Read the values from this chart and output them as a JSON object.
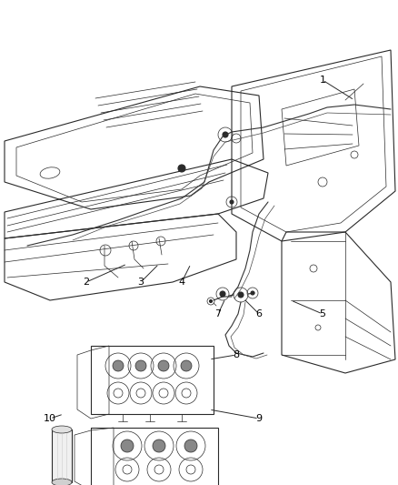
{
  "background_color": "#ffffff",
  "line_color": "#2a2a2a",
  "label_color": "#000000",
  "figsize": [
    4.38,
    5.33
  ],
  "dpi": 100,
  "labels_info": [
    [
      "1",
      355,
      88,
      390,
      110
    ],
    [
      "2",
      95,
      310,
      140,
      290
    ],
    [
      "3",
      155,
      310,
      175,
      290
    ],
    [
      "4",
      200,
      310,
      210,
      290
    ],
    [
      "5",
      355,
      345,
      320,
      330
    ],
    [
      "6",
      285,
      345,
      268,
      328
    ],
    [
      "7",
      240,
      345,
      248,
      328
    ],
    [
      "8",
      260,
      390,
      230,
      395
    ],
    [
      "9",
      285,
      460,
      230,
      450
    ],
    [
      "10",
      55,
      460,
      70,
      455
    ]
  ]
}
